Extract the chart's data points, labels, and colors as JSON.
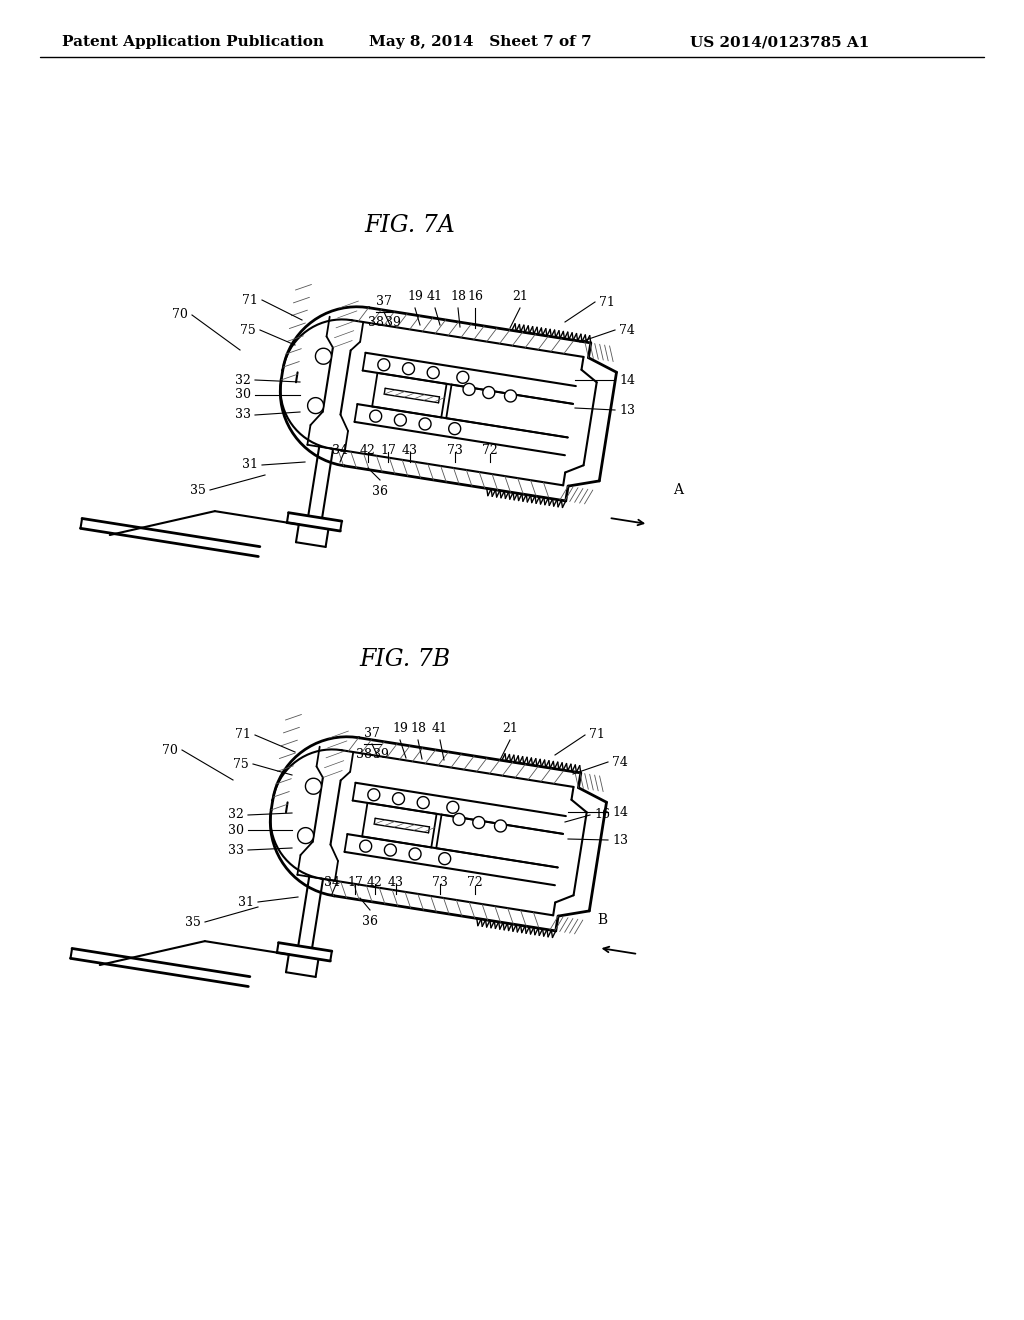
{
  "background_color": "#ffffff",
  "header_left": "Patent Application Publication",
  "header_center": "May 8, 2014   Sheet 7 of 7",
  "header_right": "US 2014/0123785 A1",
  "fig7a_title": "FIG. 7A",
  "fig7b_title": "FIG. 7B",
  "line_color": "#000000",
  "hatch_color": "#555555"
}
